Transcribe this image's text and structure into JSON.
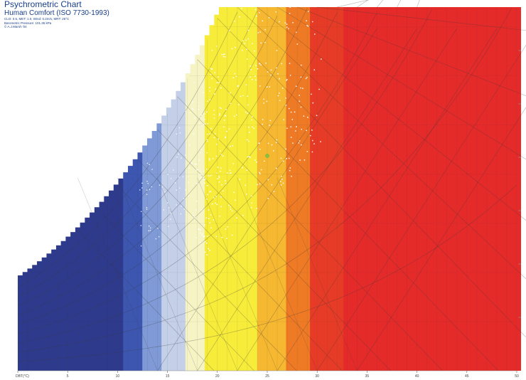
{
  "header": {
    "title": "Psychrometric Chart",
    "subtitle": "Human Comfort (ISO 7730-1993)",
    "meta_lines": [
      "CLO: 0.5, MET: 1.0, Wind: 0.2m/s, MRT: 26°C",
      "Barometric Pressure: 101.36 kPa",
      "© A.J.Marsh '04"
    ]
  },
  "chart_data": {
    "type": "heatmap",
    "title": "Psychrometric Chart",
    "subtitle": "Human Comfort (ISO 7730-1993)",
    "xlabel": "DBT(°C)",
    "x_ticks": [
      "DBT(°C)",
      "5",
      "10",
      "15",
      "20",
      "25",
      "30",
      "35",
      "40",
      "45",
      "50"
    ],
    "xlim": [
      0,
      50
    ],
    "color_scale": [
      "#2e3a8c",
      "#3d56b0",
      "#7f9ad6",
      "#c4cfe8",
      "#f6f4c4",
      "#f7ec3a",
      "#f6b731",
      "#ef7a25",
      "#e63b26",
      "#e52a2a"
    ],
    "color_scale_breaks_c": [
      10.6,
      12.7,
      14.6,
      16.6,
      18.9,
      24.2,
      27,
      29.5,
      32.6,
      33.8
    ],
    "scatter_note": "hourly climate points",
    "highlight_point": {
      "x": 25,
      "rh": 45
    }
  }
}
